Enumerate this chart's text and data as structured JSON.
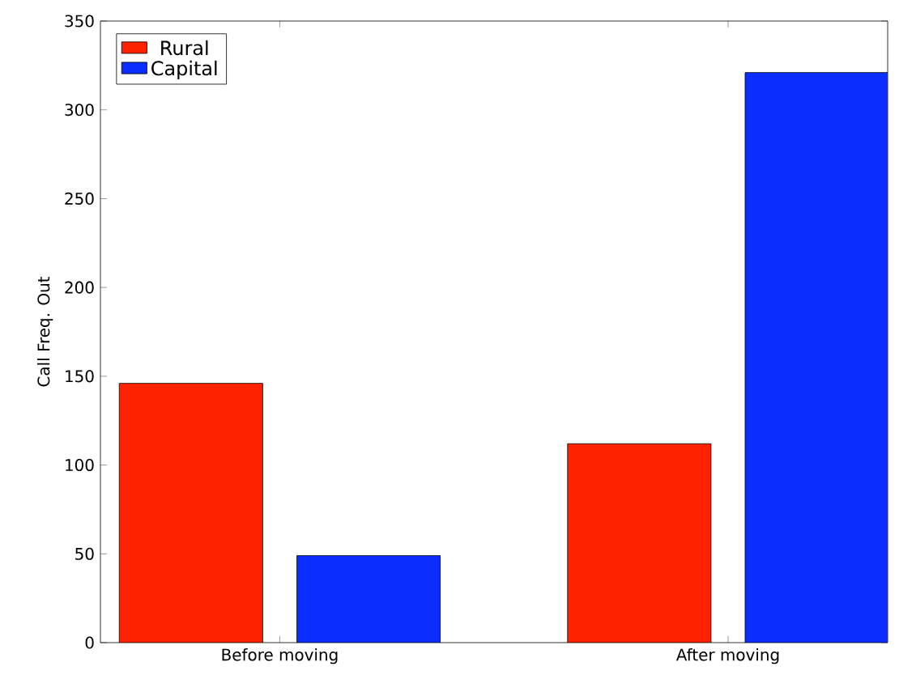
{
  "chart_data": {
    "type": "bar",
    "ylabel": "Call Freq. Out",
    "categories": [
      "Before moving",
      "After moving"
    ],
    "series": [
      {
        "name": "Rural",
        "color": "#ff2200",
        "values": [
          146,
          112
        ]
      },
      {
        "name": "Capital",
        "color": "#0b2eff",
        "values": [
          49,
          321
        ]
      }
    ],
    "ylim": [
      0,
      350
    ],
    "yticks": [
      0,
      50,
      100,
      150,
      200,
      250,
      300,
      350
    ],
    "legend": "top left"
  }
}
